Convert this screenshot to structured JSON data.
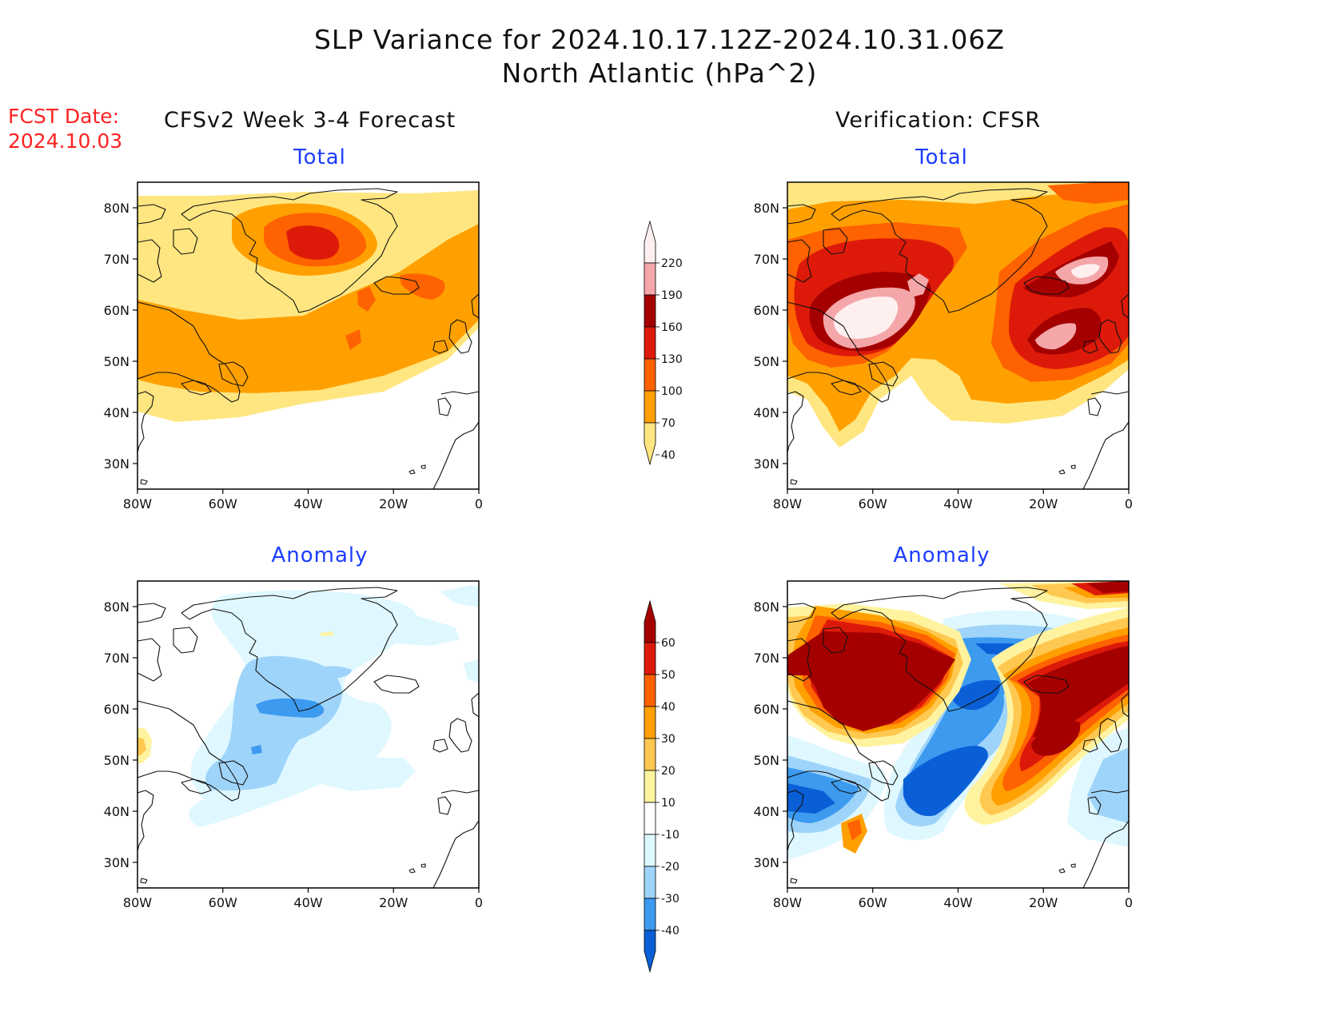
{
  "title_line1": "SLP Variance for 2024.10.17.12Z-2024.10.31.06Z",
  "title_line2": "North Atlantic (hPa^2)",
  "fcst_label": "FCST Date:",
  "fcst_date": "2024.10.03",
  "left_header": "CFSv2 Week 3-4 Forecast",
  "right_header": "Verification: CFSR",
  "panels": {
    "tl": {
      "subtitle": "Total"
    },
    "tr": {
      "subtitle": "Total"
    },
    "bl": {
      "subtitle": "Anomaly"
    },
    "br": {
      "subtitle": "Anomaly"
    }
  },
  "lat_labels": [
    "80N",
    "70N",
    "60N",
    "50N",
    "40N",
    "30N"
  ],
  "lon_labels": [
    "80W",
    "60W",
    "40W",
    "20W",
    "0"
  ],
  "map_extent": {
    "lon": [
      -80,
      0
    ],
    "lat": [
      25,
      85
    ]
  },
  "total_colorbar": {
    "labels": [
      "220",
      "190",
      "160",
      "130",
      "100",
      "70",
      "40"
    ],
    "colors": [
      "#fff0f0",
      "#f4a6a8",
      "#a50000",
      "#dd1a0a",
      "#ff6200",
      "#ffa000",
      "#ffe680"
    ]
  },
  "anomaly_colorbar": {
    "labels": [
      "60",
      "50",
      "40",
      "30",
      "20",
      "10",
      "-10",
      "-20",
      "-30",
      "-40"
    ],
    "colors": [
      "#a50000",
      "#dd1a0a",
      "#ff6200",
      "#ffa000",
      "#ffc850",
      "#fff3a0",
      "#ffffff",
      "#dff8ff",
      "#9fd4fa",
      "#3c9aef",
      "#0a5fd6"
    ]
  }
}
